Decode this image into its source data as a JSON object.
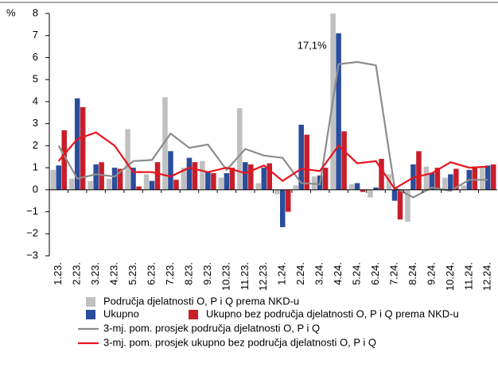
{
  "chart_data": {
    "type": "bar-line",
    "y_label": "%",
    "categories": [
      "1.23.",
      "2.23.",
      "3.23.",
      "4.23.",
      "5.23.",
      "6.23.",
      "7.23.",
      "8.23.",
      "9.23.",
      "10.23.",
      "11.23.",
      "12.23.",
      "1.24.",
      "2.24.",
      "3.24.",
      "4.24.",
      "5.24.",
      "6.24.",
      "7.24.",
      "8.24.",
      "9.24.",
      "10.24.",
      "11.24.",
      "12.24."
    ],
    "series": [
      {
        "name": "Područja djelatnosti O, P i Q prema NKD-u",
        "type": "bar",
        "color": "#c0c0c0",
        "values": [
          0.9,
          0.5,
          0.4,
          0.5,
          2.75,
          0.7,
          4.2,
          1.0,
          1.3,
          0.55,
          3.7,
          0.3,
          -0.2,
          0.2,
          0.6,
          17.1,
          0.25,
          -0.35,
          0.7,
          -1.45,
          1.05,
          0.55,
          0.2,
          1.0
        ],
        "value_labels": [
          null,
          null,
          null,
          null,
          null,
          null,
          null,
          null,
          null,
          null,
          null,
          null,
          null,
          null,
          null,
          "17,1%",
          null,
          null,
          null,
          null,
          null,
          null,
          null,
          null
        ]
      },
      {
        "name": "Ukupno",
        "type": "bar",
        "color": "#2a4d9c",
        "values": [
          1.1,
          4.15,
          1.15,
          1.0,
          1.0,
          0.4,
          1.75,
          1.45,
          0.8,
          0.75,
          1.25,
          1.0,
          -1.7,
          2.95,
          0.65,
          7.1,
          0.3,
          0.1,
          -0.5,
          1.15,
          0.75,
          0.7,
          0.9,
          1.1
        ]
      },
      {
        "name": "Ukupno bez područja djelatnosti O, P i Q prema NKD-u",
        "type": "bar",
        "color": "#c81e2a",
        "values": [
          2.7,
          3.75,
          1.25,
          0.95,
          0.15,
          1.25,
          0.45,
          1.25,
          0.75,
          1.0,
          1.15,
          1.2,
          -1.0,
          2.5,
          1.0,
          2.65,
          -0.1,
          1.4,
          -1.35,
          1.75,
          1.0,
          0.95,
          1.05,
          1.15
        ]
      },
      {
        "name": "3-mj. pom. prosjek područja djelatnosti O, P i Q",
        "type": "line",
        "color": "#8c8c8c",
        "values": [
          2.0,
          0.5,
          0.7,
          0.6,
          1.3,
          1.35,
          2.55,
          1.9,
          2.05,
          0.9,
          1.85,
          1.55,
          1.45,
          0.3,
          0.25,
          5.7,
          5.8,
          5.65,
          0.1,
          -0.35,
          0.1,
          -0.05,
          0.45,
          0.45
        ]
      },
      {
        "name": "3-mj. pom. prosjek ukupno bez područja djelatnosti O, P i Q",
        "type": "line",
        "color": "#e8141e",
        "values": [
          1.3,
          2.3,
          2.6,
          2.0,
          0.8,
          0.8,
          0.6,
          1.0,
          0.8,
          1.0,
          0.75,
          1.1,
          0.4,
          0.95,
          0.85,
          2.0,
          1.2,
          1.3,
          0.05,
          0.55,
          0.75,
          1.25,
          1.0,
          1.05
        ]
      }
    ],
    "ylim": [
      -3,
      8
    ],
    "yticks": [
      {
        "value": -3,
        "label": "−3"
      },
      {
        "value": -2,
        "label": "−2"
      },
      {
        "value": -1,
        "label": "−1"
      },
      0,
      1,
      2,
      3,
      4,
      5,
      6,
      7,
      8
    ]
  }
}
